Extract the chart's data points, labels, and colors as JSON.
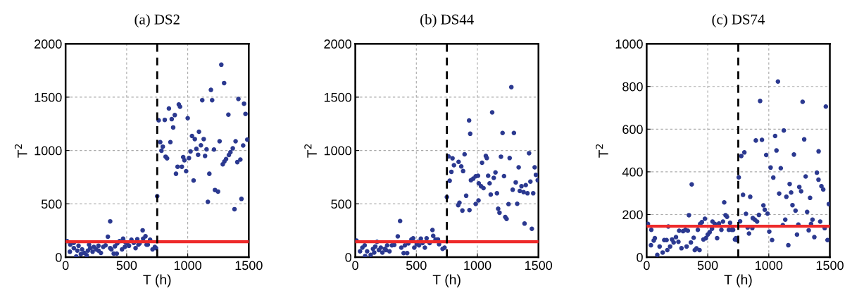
{
  "chart_data": [
    {
      "type": "scatter",
      "title": "(a) DS2",
      "xlabel": "T (h)",
      "ylabel": "T$^{2}$",
      "color": "#2b3990",
      "marker": "circle",
      "grid": true,
      "xlim": [
        0,
        1500
      ],
      "ylim": [
        0,
        2000
      ],
      "xticks": [
        0,
        500,
        1000,
        1500
      ],
      "yticks": [
        0,
        500,
        1000,
        1500,
        2000
      ],
      "ref_lines": [
        {
          "axis": "y",
          "value": 145,
          "color": "#ee2a2a",
          "line_style": "solid"
        },
        {
          "axis": "x",
          "value": 750,
          "color": "#000000",
          "line_style": "dashed"
        }
      ],
      "x": [
        1275,
        1298,
        1190,
        1119,
        1200,
        1415,
        1461,
        846,
        927,
        937,
        1473,
        1333,
        894,
        869,
        1000,
        762,
        812,
        881,
        1092,
        1035,
        1058,
        1131,
        775,
        858,
        1261,
        1392,
        1488,
        796,
        1108,
        1071,
        785,
        1023,
        1154,
        1215,
        1454,
        1369,
        1085,
        1142,
        819,
        831,
        1350,
        1337,
        963,
        973,
        1010,
        1314,
        1300,
        1431,
        1406,
        1287,
        917,
        952,
        987,
        904,
        1177,
        1048,
        1223,
        1248,
        1165,
        1440,
        1383,
        750,
        12,
        38,
        67,
        35,
        87,
        96,
        125,
        135,
        154,
        173,
        183,
        202,
        221,
        231,
        250,
        269,
        289,
        308,
        327,
        346,
        365,
        375,
        394,
        419,
        423,
        442,
        462,
        471,
        485,
        504,
        519,
        539,
        558,
        573,
        587,
        606,
        631,
        635,
        654,
        673,
        692,
        712,
        731,
        740,
        67,
        106,
        192,
        269,
        365,
        404,
        490,
        596,
        663
      ],
      "values": [
        1804,
        1632,
        1568,
        1472,
        1472,
        1483,
        1439,
        1394,
        1432,
        1410,
        1343,
        1336,
        1332,
        1294,
        1303,
        1283,
        1287,
        1216,
        1176,
        1136,
        1107,
        1107,
        1078,
        1078,
        1087,
        1087,
        1102,
        1036,
        1049,
        1016,
        998,
        991,
        1011,
        1009,
        1047,
        1020,
        960,
        949,
        942,
        926,
        984,
        958,
        938,
        909,
        929,
        920,
        897,
        915,
        891,
        871,
        848,
        848,
        806,
        782,
        782,
        719,
        630,
        615,
        519,
        546,
        450,
        572,
        151,
        118,
        85,
        51,
        7,
        62,
        29,
        73,
        40,
        18,
        62,
        85,
        51,
        96,
        73,
        107,
        40,
        96,
        111,
        192,
        336,
        73,
        33,
        33,
        129,
        151,
        73,
        174,
        96,
        129,
        107,
        163,
        134,
        85,
        169,
        129,
        252,
        174,
        196,
        118,
        163,
        73,
        96,
        85,
        134,
        107,
        118,
        62,
        85,
        102,
        140,
        118,
        118
      ]
    },
    {
      "type": "scatter",
      "title": "(b) DS44",
      "xlabel": "T (h)",
      "ylabel": "T$^{2}$",
      "color": "#2b3990",
      "marker": "circle",
      "grid": true,
      "xlim": [
        0,
        1500
      ],
      "ylim": [
        0,
        2000
      ],
      "xticks": [
        0,
        500,
        1000,
        1500
      ],
      "yticks": [
        0,
        500,
        1000,
        1500,
        2000
      ],
      "ref_lines": [
        {
          "axis": "y",
          "value": 145,
          "color": "#ee2a2a",
          "line_style": "solid"
        },
        {
          "axis": "x",
          "value": 750,
          "color": "#000000",
          "line_style": "dashed"
        }
      ],
      "x": [
        1278,
        1121,
        932,
        941,
        1206,
        1299,
        895,
        1423,
        763,
        796,
        808,
        846,
        868,
        883,
        787,
        773,
        1069,
        1077,
        1038,
        1193,
        1264,
        1338,
        1469,
        1479,
        1434,
        1494,
        1005,
        986,
        966,
        947,
        1148,
        1134,
        1088,
        1218,
        1100,
        1011,
        1030,
        1050,
        1160,
        1109,
        1314,
        1361,
        1396,
        1289,
        1347,
        1378,
        1410,
        1457,
        908,
        1009,
        986,
        853,
        843,
        877,
        935,
        1255,
        1326,
        1170,
        1181,
        1228,
        1239,
        1386,
        1446,
        750,
        10,
        39,
        58,
        81,
        97,
        126,
        145,
        155,
        178,
        193,
        209,
        222,
        242,
        261,
        280,
        300,
        319,
        348,
        367,
        377,
        396,
        425,
        435,
        460,
        474,
        483,
        503,
        522,
        537,
        551,
        570,
        584,
        609,
        632,
        638,
        657,
        686,
        715,
        731,
        77,
        164,
        251,
        406,
        512,
        677
      ],
      "values": [
        1594,
        1357,
        1281,
        1157,
        1164,
        1164,
        964,
        975,
        944,
        927,
        862,
        893,
        851,
        807,
        800,
        716,
        949,
        929,
        885,
        942,
        929,
        842,
        842,
        772,
        709,
        721,
        763,
        758,
        736,
        721,
        794,
        743,
        763,
        760,
        692,
        692,
        665,
        647,
        599,
        587,
        701,
        665,
        676,
        632,
        621,
        610,
        599,
        599,
        576,
        532,
        499,
        510,
        488,
        437,
        441,
        497,
        501,
        454,
        417,
        377,
        359,
        315,
        266,
        563,
        155,
        55,
        89,
        11,
        55,
        22,
        78,
        44,
        144,
        67,
        89,
        44,
        78,
        111,
        55,
        111,
        115,
        195,
        339,
        89,
        38,
        38,
        129,
        166,
        177,
        89,
        122,
        111,
        173,
        133,
        89,
        177,
        133,
        255,
        200,
        166,
        122,
        78,
        89,
        111,
        100,
        67,
        111,
        144,
        166
      ]
    },
    {
      "type": "scatter",
      "title": "(c) DS74",
      "xlabel": "T (h)",
      "ylabel": "T$^{2}$",
      "color": "#2b3990",
      "marker": "circle",
      "grid": true,
      "xlim": [
        0,
        1500
      ],
      "ylim": [
        0,
        1000
      ],
      "xticks": [
        0,
        500,
        1000,
        1500
      ],
      "yticks": [
        0,
        200,
        400,
        600,
        800,
        1000
      ],
      "ref_lines": [
        {
          "axis": "y",
          "value": 145,
          "color": "#ee2a2a",
          "line_style": "solid"
        },
        {
          "axis": "x",
          "value": 750,
          "color": "#000000",
          "line_style": "dashed"
        }
      ],
      "x": [
        1075,
        929,
        1277,
        1467,
        1123,
        894,
        944,
        1052,
        1290,
        775,
        800,
        979,
        1063,
        1408,
        1206,
        1015,
        1098,
        754,
        1037,
        1394,
        1302,
        1407,
        369,
        1171,
        1431,
        1250,
        1446,
        1085,
        1183,
        1265,
        789,
        848,
        1144,
        1338,
        1194,
        1492,
        956,
        967,
        635,
        1219,
        1314,
        990,
        813,
        919,
        646,
        658,
        869,
        885,
        904,
        1135,
        1358,
        1421,
        765,
        346,
        477,
        1115,
        1242,
        1346,
        827,
        865,
        1458,
        1004,
        1327,
        838,
        1231,
        1373,
        1027,
        1481,
        1160,
        738,
        731,
        723,
        10,
        38,
        67,
        58,
        35,
        87,
        106,
        131,
        144,
        163,
        169,
        192,
        208,
        221,
        240,
        260,
        266,
        285,
        298,
        317,
        327,
        337,
        362,
        385,
        394,
        408,
        433,
        419,
        438,
        452,
        465,
        485,
        500,
        516,
        535,
        539,
        558,
        577,
        592,
        612,
        625,
        673,
        683,
        696,
        708,
        177
      ],
      "values": [
        823,
        732,
        728,
        706,
        594,
        547,
        550,
        568,
        552,
        474,
        491,
        479,
        500,
        496,
        481,
        420,
        417,
        374,
        373,
        396,
        378,
        363,
        341,
        343,
        333,
        329,
        317,
        298,
        303,
        309,
        292,
        283,
        283,
        278,
        244,
        249,
        243,
        222,
        257,
        218,
        212,
        204,
        203,
        198,
        197,
        189,
        183,
        176,
        167,
        176,
        176,
        167,
        168,
        197,
        180,
        150,
        153,
        156,
        139,
        136,
        136,
        120,
        126,
        111,
        106,
        94,
        80,
        80,
        56,
        80,
        89,
        83,
        156,
        128,
        89,
        78,
        56,
        11,
        50,
        22,
        80,
        80,
        33,
        50,
        83,
        69,
        94,
        72,
        124,
        42,
        122,
        128,
        50,
        124,
        69,
        91,
        33,
        41,
        33,
        128,
        156,
        164,
        83,
        89,
        106,
        117,
        133,
        167,
        156,
        89,
        158,
        128,
        167,
        128,
        161,
        128,
        128,
        144
      ]
    }
  ]
}
